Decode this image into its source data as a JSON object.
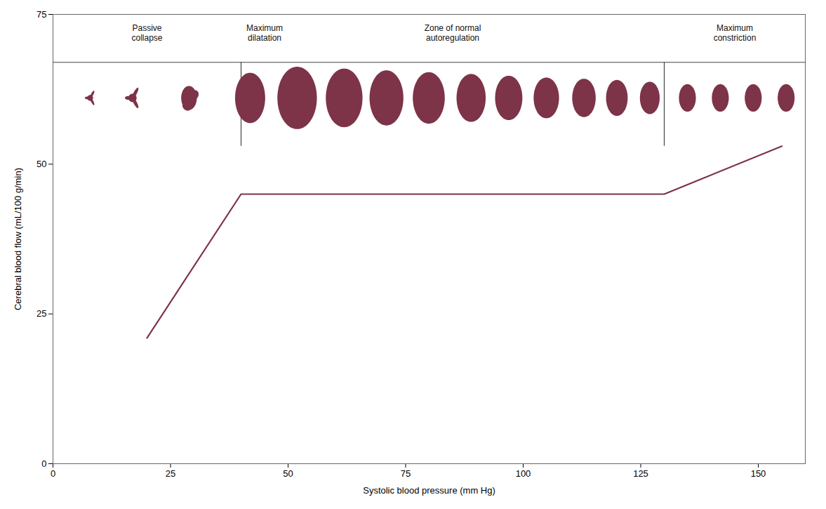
{
  "chart_data": {
    "type": "line",
    "xlabel": "Systolic blood pressure (mm Hg)",
    "ylabel": "Cerebral blood flow (mL/100 g/min)",
    "xlim": [
      0,
      160
    ],
    "ylim": [
      0,
      75
    ],
    "xticks": [
      0,
      25,
      50,
      75,
      100,
      125,
      150
    ],
    "yticks": [
      0,
      25,
      50,
      75
    ],
    "grid": false,
    "x": [
      20,
      40,
      130,
      155
    ],
    "values": [
      21,
      45,
      45,
      53
    ],
    "color": "#7d3348",
    "hline": 67,
    "vlines": [
      {
        "x": 40,
        "y1": 53,
        "y2": 67
      },
      {
        "x": 130,
        "y1": 53,
        "y2": 67
      }
    ],
    "annotations": [
      {
        "text": "Passive\ncollapse",
        "x": 20,
        "y": 73.5
      },
      {
        "text": "Maximum\ndilatation",
        "x": 45,
        "y": 73.5
      },
      {
        "text": "Zone of normal\nautoregulation",
        "x": 85,
        "y": 73.5
      },
      {
        "text": "Maximum\nconstriction",
        "x": 145,
        "y": 73.5
      }
    ],
    "vessels": {
      "color": "#7d3348",
      "items": [
        {
          "x": 8,
          "y": 61,
          "rx": 1.8,
          "ry": 1.4,
          "shape": "star3",
          "scale": 0.55
        },
        {
          "x": 17,
          "y": 61,
          "rx": 2.5,
          "ry": 2.0,
          "shape": "star3",
          "scale": 0.78
        },
        {
          "x": 29,
          "y": 61,
          "rx": 3.0,
          "ry": 3.0,
          "shape": "blob",
          "scale": 0.95
        },
        {
          "x": 42,
          "y": 61,
          "rx": 3.2,
          "ry": 4.2,
          "shape": "ellipse"
        },
        {
          "x": 52,
          "y": 61,
          "rx": 4.2,
          "ry": 5.2,
          "shape": "ellipse"
        },
        {
          "x": 62,
          "y": 61,
          "rx": 3.9,
          "ry": 4.9,
          "shape": "ellipse"
        },
        {
          "x": 71,
          "y": 61,
          "rx": 3.6,
          "ry": 4.6,
          "shape": "ellipse"
        },
        {
          "x": 80,
          "y": 61,
          "rx": 3.4,
          "ry": 4.3,
          "shape": "ellipse"
        },
        {
          "x": 89,
          "y": 61,
          "rx": 3.1,
          "ry": 4.0,
          "shape": "ellipse"
        },
        {
          "x": 97,
          "y": 61,
          "rx": 2.9,
          "ry": 3.7,
          "shape": "ellipse"
        },
        {
          "x": 105,
          "y": 61,
          "rx": 2.7,
          "ry": 3.4,
          "shape": "ellipse"
        },
        {
          "x": 113,
          "y": 61,
          "rx": 2.5,
          "ry": 3.2,
          "shape": "ellipse"
        },
        {
          "x": 120,
          "y": 61,
          "rx": 2.3,
          "ry": 3.0,
          "shape": "ellipse"
        },
        {
          "x": 127,
          "y": 61,
          "rx": 2.1,
          "ry": 2.7,
          "shape": "ellipse"
        },
        {
          "x": 135,
          "y": 61,
          "rx": 1.8,
          "ry": 2.3,
          "shape": "ellipse"
        },
        {
          "x": 142,
          "y": 61,
          "rx": 1.8,
          "ry": 2.3,
          "shape": "ellipse"
        },
        {
          "x": 149,
          "y": 61,
          "rx": 1.8,
          "ry": 2.3,
          "shape": "ellipse"
        },
        {
          "x": 156,
          "y": 61,
          "rx": 1.8,
          "ry": 2.3,
          "shape": "ellipse"
        }
      ]
    }
  }
}
